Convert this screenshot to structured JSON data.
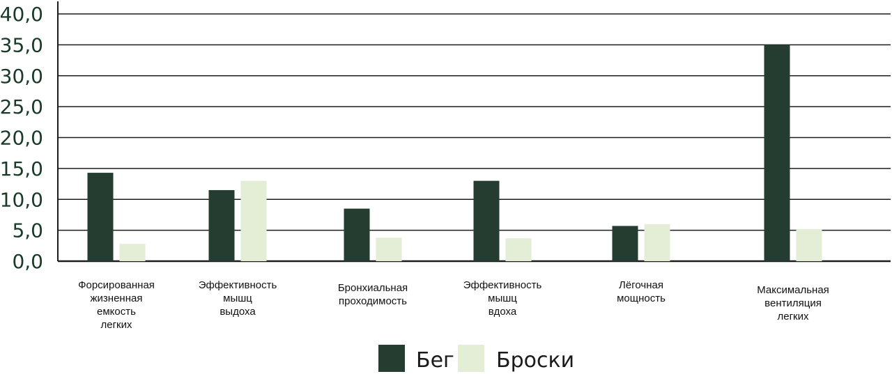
{
  "colors": {
    "series_1": "#243d30",
    "series_2": "#e4eed6",
    "gridline": "#1c1c1c",
    "axis_text": "#1a3a28"
  },
  "chart_data": {
    "type": "bar",
    "title": "",
    "xlabel": "",
    "ylabel": "",
    "ylim": [
      0,
      40
    ],
    "yticks": [
      "0,0",
      "5,0",
      "10,0",
      "15,0",
      "20,0",
      "25,0",
      "30,0",
      "35,0",
      "40,0"
    ],
    "grid": true,
    "legend_position": "bottom-center",
    "categories": [
      [
        "Форсированная",
        "жизненная",
        "емкость",
        "легких"
      ],
      [
        "Эффективность",
        "мышц",
        "выдоха"
      ],
      [
        "Бронхиальная",
        "проходимость"
      ],
      [
        "Эффективность",
        "мышц",
        "вдоха"
      ],
      [
        "Лёгочная",
        "мощность"
      ],
      [
        "Максимальная",
        "вентиляция",
        "легких"
      ]
    ],
    "series": [
      {
        "name": "Бег",
        "values": [
          14.3,
          11.5,
          8.5,
          13.0,
          5.7,
          35.0
        ]
      },
      {
        "name": "Броски",
        "values": [
          2.8,
          13.0,
          3.8,
          3.7,
          6.0,
          5.2
        ]
      }
    ]
  }
}
